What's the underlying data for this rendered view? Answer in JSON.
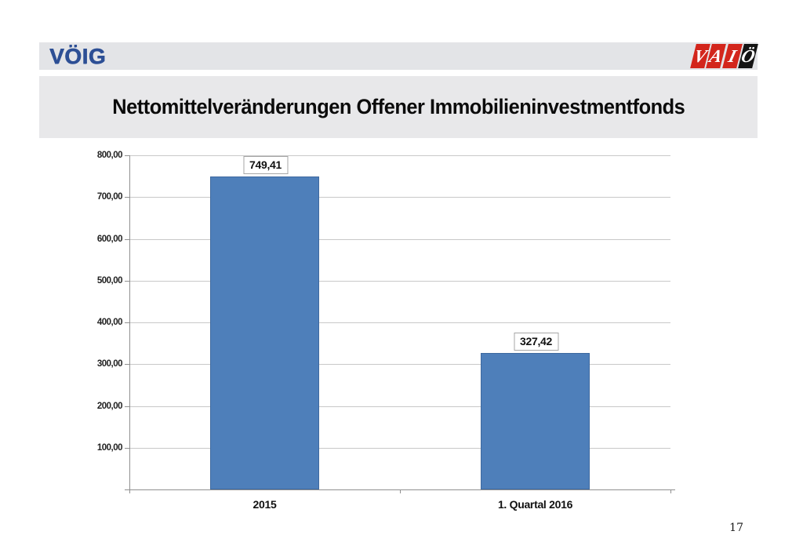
{
  "header": {
    "voig_logo": "VÖIG",
    "vaio_letters": [
      "V",
      "A",
      "I",
      "Ö"
    ]
  },
  "title": "Nettomittelveränderungen Offener Immobilieninvestmentfonds",
  "page": {
    "number": "17"
  },
  "colors": {
    "bar_fill": "#4e7fba",
    "bar_border": "#3e699f",
    "gridline": "#c8c8c8",
    "axis": "#909090",
    "band_gray": "#e8e8ea",
    "voig_blue": "#2d4f95",
    "vaio_red": "#d3261c",
    "vaio_black": "#141414"
  },
  "chart_data": {
    "type": "bar",
    "title": "",
    "categories": [
      "2015",
      "1. Quartal 2016"
    ],
    "values": [
      749.41,
      327.42
    ],
    "value_labels": [
      "749,41",
      "327,42"
    ],
    "xlabel": "",
    "ylabel": "",
    "ylim": [
      0,
      800
    ],
    "ytick_step": 100,
    "ytick_labels": [
      "100,00",
      "200,00",
      "300,00",
      "400,00",
      "500,00",
      "600,00",
      "700,00",
      "800,00"
    ],
    "grid": true,
    "legend": false,
    "bar_color": "#4e7fba",
    "bar_border_color": "#3e699f"
  }
}
